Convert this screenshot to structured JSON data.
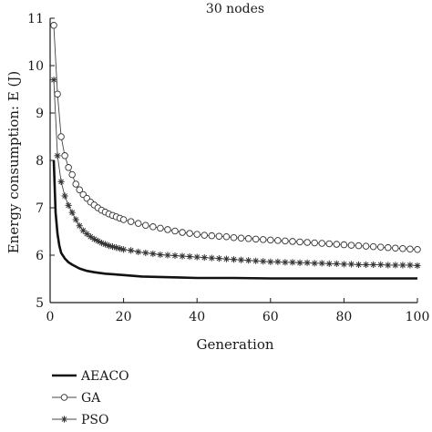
{
  "chart_data": {
    "type": "line",
    "title": "30 nodes",
    "xlabel": "Generation",
    "ylabel": "Energy consumption: E (J)",
    "xlim": [
      0,
      100
    ],
    "ylim": [
      5,
      11
    ],
    "xticks": [
      0,
      20,
      40,
      60,
      80,
      100
    ],
    "yticks": [
      5,
      6,
      7,
      8,
      9,
      10,
      11
    ],
    "grid": false,
    "legend_position": "bottom-left",
    "series": [
      {
        "name": "AEACO",
        "marker": "none",
        "x": [
          1,
          1.5,
          2,
          2.5,
          3,
          4,
          5,
          6,
          7,
          8,
          10,
          12,
          15,
          20,
          25,
          30,
          35,
          40,
          50,
          60,
          70,
          80,
          90,
          100
        ],
        "y": [
          8.0,
          6.9,
          6.45,
          6.2,
          6.05,
          5.93,
          5.85,
          5.8,
          5.76,
          5.72,
          5.67,
          5.64,
          5.61,
          5.58,
          5.55,
          5.54,
          5.53,
          5.52,
          5.52,
          5.51,
          5.51,
          5.51,
          5.51,
          5.51
        ]
      },
      {
        "name": "GA",
        "marker": "circle",
        "x": [
          1,
          2,
          3,
          4,
          5,
          6,
          7,
          8,
          9,
          10,
          11,
          12,
          13,
          14,
          15,
          16,
          17,
          18,
          19,
          20,
          22,
          24,
          26,
          28,
          30,
          32,
          34,
          36,
          38,
          40,
          42,
          44,
          46,
          48,
          50,
          52,
          54,
          56,
          58,
          60,
          62,
          64,
          66,
          68,
          70,
          72,
          74,
          76,
          78,
          80,
          82,
          84,
          86,
          88,
          90,
          92,
          94,
          96,
          98,
          100
        ],
        "y": [
          10.85,
          9.4,
          8.5,
          8.1,
          7.85,
          7.7,
          7.5,
          7.38,
          7.28,
          7.2,
          7.12,
          7.06,
          7.0,
          6.95,
          6.91,
          6.87,
          6.84,
          6.81,
          6.78,
          6.75,
          6.71,
          6.67,
          6.63,
          6.6,
          6.57,
          6.54,
          6.51,
          6.48,
          6.46,
          6.44,
          6.42,
          6.41,
          6.4,
          6.39,
          6.37,
          6.36,
          6.35,
          6.34,
          6.33,
          6.32,
          6.31,
          6.3,
          6.29,
          6.28,
          6.27,
          6.26,
          6.25,
          6.24,
          6.23,
          6.22,
          6.21,
          6.2,
          6.19,
          6.18,
          6.17,
          6.16,
          6.15,
          6.14,
          6.13,
          6.12
        ]
      },
      {
        "name": "PSO",
        "marker": "asterisk",
        "x": [
          1,
          2,
          3,
          4,
          5,
          6,
          7,
          8,
          9,
          10,
          11,
          12,
          13,
          14,
          15,
          16,
          17,
          18,
          19,
          20,
          22,
          24,
          26,
          28,
          30,
          32,
          34,
          36,
          38,
          40,
          42,
          44,
          46,
          48,
          50,
          52,
          54,
          56,
          58,
          60,
          62,
          64,
          66,
          68,
          70,
          72,
          74,
          76,
          78,
          80,
          82,
          84,
          86,
          88,
          90,
          92,
          94,
          96,
          98,
          100
        ],
        "y": [
          9.7,
          8.1,
          7.55,
          7.25,
          7.05,
          6.9,
          6.75,
          6.62,
          6.52,
          6.45,
          6.39,
          6.34,
          6.3,
          6.26,
          6.23,
          6.2,
          6.18,
          6.16,
          6.14,
          6.12,
          6.1,
          6.07,
          6.05,
          6.03,
          6.01,
          6.0,
          5.99,
          5.98,
          5.97,
          5.96,
          5.95,
          5.94,
          5.93,
          5.92,
          5.91,
          5.9,
          5.89,
          5.88,
          5.87,
          5.86,
          5.86,
          5.85,
          5.85,
          5.84,
          5.84,
          5.83,
          5.83,
          5.82,
          5.82,
          5.81,
          5.81,
          5.8,
          5.8,
          5.8,
          5.8,
          5.79,
          5.79,
          5.79,
          5.79,
          5.78
        ]
      }
    ]
  }
}
